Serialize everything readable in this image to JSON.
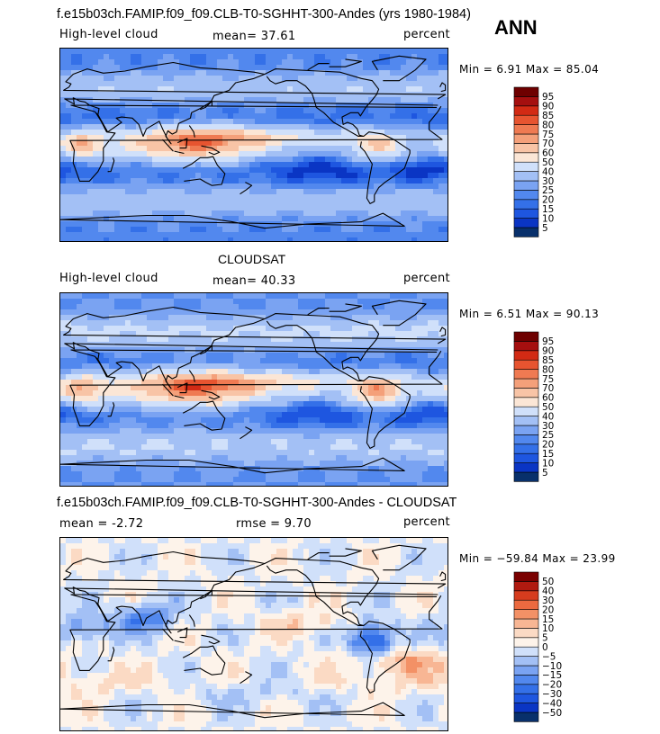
{
  "chart_data": [
    {
      "type": "heatmap",
      "title": "f.e15b03ch.FAMIP.f09_f09.CLB-T0-SGHHT-300-Andes (yrs 1980-1984)",
      "season": "ANN",
      "left_label": "High-level cloud",
      "center_label": "mean=   37.61",
      "right_label": "percent",
      "range_label": "Min =    6.91  Max =  85.04",
      "min": 6.91,
      "max": 85.04,
      "mean": 37.61,
      "colorbar_levels": [
        "5",
        "10",
        "15",
        "20",
        "25",
        "30",
        "40",
        "50",
        "60",
        "70",
        "75",
        "80",
        "85",
        "90",
        "95"
      ],
      "colors": [
        "#08306b",
        "#0a35c4",
        "#1e56e0",
        "#3470e8",
        "#5288ee",
        "#7aa3f2",
        "#a3c0f5",
        "#d0e0fa",
        "#fbe6d6",
        "#f8c4a6",
        "#f4a07a",
        "#ef7a52",
        "#e75430",
        "#d22a14",
        "#a50f0f",
        "#6e0000"
      ]
    },
    {
      "type": "heatmap",
      "title": "CLOUDSAT",
      "left_label": "High-level cloud",
      "center_label": "mean=   40.33",
      "right_label": "percent",
      "range_label": "Min =    6.51  Max =  90.13",
      "min": 6.51,
      "max": 90.13,
      "mean": 40.33,
      "colorbar_levels": [
        "5",
        "10",
        "15",
        "20",
        "25",
        "30",
        "40",
        "50",
        "60",
        "70",
        "75",
        "80",
        "85",
        "90",
        "95"
      ],
      "colors": [
        "#08306b",
        "#0a35c4",
        "#1e56e0",
        "#3470e8",
        "#5288ee",
        "#7aa3f2",
        "#a3c0f5",
        "#d0e0fa",
        "#fbe6d6",
        "#f8c4a6",
        "#f4a07a",
        "#ef7a52",
        "#e75430",
        "#d22a14",
        "#a50f0f",
        "#6e0000"
      ]
    },
    {
      "type": "heatmap",
      "title": "f.e15b03ch.FAMIP.f09_f09.CLB-T0-SGHHT-300-Andes - CLOUDSAT",
      "left_label": "mean =  -2.72",
      "center_label": "rmse =    9.70",
      "right_label": "percent",
      "range_label": "Min = −59.84  Max =  23.99",
      "min": -59.84,
      "max": 23.99,
      "mean": -2.72,
      "rmse": 9.7,
      "colorbar_levels": [
        "−50",
        "−40",
        "−30",
        "−20",
        "−15",
        "−10",
        "−5",
        "0",
        "5",
        "10",
        "15",
        "20",
        "30",
        "40",
        "50"
      ],
      "colors": [
        "#08306b",
        "#0a35c4",
        "#1e56e0",
        "#3470e8",
        "#5288ee",
        "#7aa3f2",
        "#a3c0f5",
        "#d0e0fa",
        "#fdf3ea",
        "#fbdac4",
        "#f8b694",
        "#f39166",
        "#eb6a40",
        "#d63c1e",
        "#b01a10",
        "#7a0000"
      ]
    }
  ]
}
